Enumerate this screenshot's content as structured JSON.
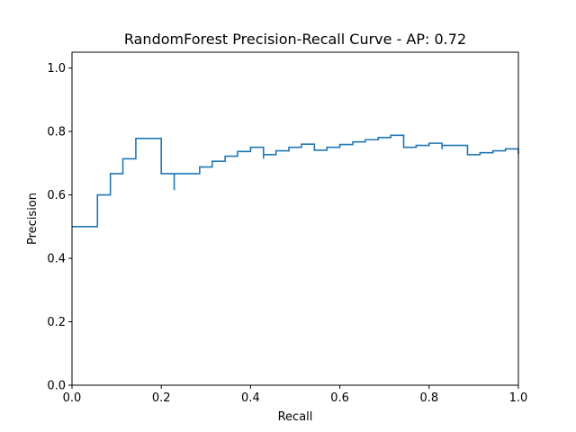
{
  "chart_data": {
    "type": "line",
    "drawstyle": "steps-post",
    "title": "RandomForest Precision-Recall Curve - AP: 0.72",
    "xlabel": "Recall",
    "ylabel": "Precision",
    "xlim": [
      0.0,
      1.0
    ],
    "ylim": [
      0.0,
      1.05
    ],
    "xticks": [
      0.0,
      0.2,
      0.4,
      0.6,
      0.8,
      1.0
    ],
    "xtick_labels": [
      "0.0",
      "0.2",
      "0.4",
      "0.6",
      "0.8",
      "1.0"
    ],
    "yticks": [
      0.0,
      0.2,
      0.4,
      0.6,
      0.8,
      1.0
    ],
    "ytick_labels": [
      "0.0",
      "0.2",
      "0.4",
      "0.6",
      "0.8",
      "1.0"
    ],
    "grid": false,
    "color": "#1f77b4",
    "series": [
      {
        "recall": [
          0.0,
          0.057,
          0.057,
          0.086,
          0.086,
          0.114,
          0.114,
          0.143,
          0.143,
          0.2,
          0.2,
          0.229,
          0.229,
          0.229,
          0.286,
          0.286,
          0.314,
          0.314,
          0.343,
          0.343,
          0.371,
          0.371,
          0.4,
          0.4,
          0.429,
          0.429,
          0.429,
          0.457,
          0.457,
          0.486,
          0.486,
          0.514,
          0.514,
          0.543,
          0.543,
          0.571,
          0.571,
          0.6,
          0.6,
          0.629,
          0.629,
          0.657,
          0.657,
          0.686,
          0.686,
          0.714,
          0.714,
          0.743,
          0.743,
          0.771,
          0.771,
          0.8,
          0.8,
          0.829,
          0.829,
          0.829,
          0.886,
          0.886,
          0.914,
          0.914,
          0.943,
          0.943,
          0.971,
          0.971,
          1.0,
          1.0
        ],
        "precision": [
          0.5,
          0.5,
          0.6,
          0.6,
          0.667,
          0.667,
          0.714,
          0.714,
          0.778,
          0.778,
          0.667,
          0.667,
          0.615,
          0.667,
          0.667,
          0.688,
          0.688,
          0.706,
          0.706,
          0.722,
          0.722,
          0.737,
          0.737,
          0.75,
          0.75,
          0.714,
          0.727,
          0.727,
          0.739,
          0.739,
          0.75,
          0.75,
          0.76,
          0.76,
          0.741,
          0.741,
          0.75,
          0.75,
          0.759,
          0.759,
          0.767,
          0.767,
          0.774,
          0.774,
          0.781,
          0.781,
          0.788,
          0.788,
          0.75,
          0.75,
          0.756,
          0.756,
          0.763,
          0.763,
          0.744,
          0.756,
          0.756,
          0.727,
          0.727,
          0.733,
          0.733,
          0.739,
          0.739,
          0.745,
          0.745,
          0.729
        ]
      }
    ]
  }
}
